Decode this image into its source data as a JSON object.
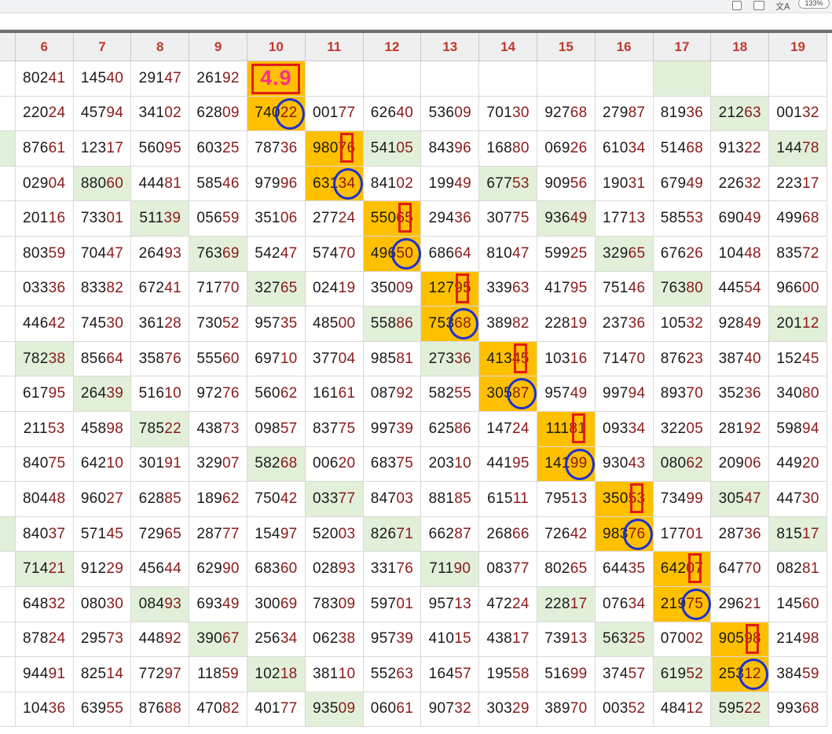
{
  "browser": {
    "zoom_label": "133%",
    "translate_glyph": "文A"
  },
  "sheet": {
    "columns": [
      "6",
      "7",
      "8",
      "9",
      "10",
      "11",
      "12",
      "13",
      "14",
      "15",
      "16",
      "17",
      "18",
      "19"
    ],
    "first_column_fragments": [
      "2",
      "3",
      "3",
      "7",
      "4",
      "6",
      "2",
      "0",
      "2",
      "9",
      "0",
      "0",
      "7",
      "7",
      "5",
      "4",
      "5",
      "5",
      "9"
    ],
    "rows": [
      [
        "80241",
        "14540",
        "29147",
        "26192",
        "4.9",
        "",
        "",
        "",
        "",
        "",
        "",
        "",
        "",
        ""
      ],
      [
        "22024",
        "45794",
        "34102",
        "62809",
        "74022",
        "00177",
        "62640",
        "53609",
        "70130",
        "92768",
        "27987",
        "81936",
        "21263",
        "00132"
      ],
      [
        "87661",
        "12317",
        "56095",
        "60325",
        "78736",
        "98076",
        "54105",
        "84396",
        "16880",
        "06926",
        "61034",
        "51468",
        "91322",
        "14478"
      ],
      [
        "02904",
        "88060",
        "44481",
        "58546",
        "97996",
        "63134",
        "84102",
        "19949",
        "67753",
        "90956",
        "19031",
        "67949",
        "22632",
        "22317"
      ],
      [
        "20116",
        "73301",
        "51139",
        "05659",
        "35106",
        "27724",
        "55065",
        "29436",
        "30775",
        "93649",
        "17713",
        "58553",
        "69049",
        "49968"
      ],
      [
        "80359",
        "70447",
        "26493",
        "76369",
        "54247",
        "57470",
        "49650",
        "68664",
        "81047",
        "59925",
        "32965",
        "67626",
        "10448",
        "83572"
      ],
      [
        "03336",
        "83382",
        "67241",
        "71770",
        "32765",
        "02419",
        "35009",
        "12795",
        "33963",
        "41795",
        "75146",
        "76380",
        "44554",
        "96600"
      ],
      [
        "44642",
        "74530",
        "36128",
        "73052",
        "95735",
        "48500",
        "55886",
        "75368",
        "38982",
        "22819",
        "23736",
        "10532",
        "92849",
        "20112"
      ],
      [
        "78238",
        "85664",
        "35876",
        "55560",
        "69710",
        "37704",
        "98581",
        "27336",
        "41345",
        "10316",
        "71470",
        "87623",
        "38740",
        "15245"
      ],
      [
        "61795",
        "26439",
        "51610",
        "97276",
        "56062",
        "16161",
        "08792",
        "58255",
        "30587",
        "95749",
        "99794",
        "89370",
        "35236",
        "34080"
      ],
      [
        "21153",
        "45898",
        "78522",
        "43873",
        "09857",
        "83775",
        "99739",
        "62586",
        "14724",
        "11181",
        "09334",
        "32205",
        "28192",
        "59894"
      ],
      [
        "84075",
        "64210",
        "30191",
        "32907",
        "58268",
        "00620",
        "68375",
        "20310",
        "44195",
        "14199",
        "93043",
        "08062",
        "20906",
        "44920"
      ],
      [
        "80448",
        "96027",
        "62885",
        "18962",
        "75042",
        "03377",
        "84703",
        "88185",
        "61511",
        "79513",
        "35053",
        "73499",
        "30547",
        "44730"
      ],
      [
        "84037",
        "57145",
        "72965",
        "28777",
        "15497",
        "52003",
        "82671",
        "66287",
        "26866",
        "72642",
        "98376",
        "17701",
        "28736",
        "81517"
      ],
      [
        "71421",
        "91229",
        "45644",
        "62990",
        "68360",
        "02893",
        "33176",
        "71190",
        "08377",
        "80265",
        "64435",
        "64207",
        "64770",
        "08281"
      ],
      [
        "64832",
        "08030",
        "08493",
        "69349",
        "30069",
        "78309",
        "59701",
        "95713",
        "47224",
        "22817",
        "07634",
        "21975",
        "29621",
        "14560"
      ],
      [
        "87824",
        "29573",
        "44892",
        "39067",
        "25634",
        "06238",
        "95739",
        "41015",
        "43817",
        "73913",
        "56325",
        "07002",
        "90598",
        "21498"
      ],
      [
        "94491",
        "82514",
        "77297",
        "11859",
        "10218",
        "38110",
        "55263",
        "16457",
        "19558",
        "51699",
        "37457",
        "61952",
        "25312",
        "38459"
      ],
      [
        "10436",
        "63955",
        "87688",
        "47082",
        "40177",
        "93509",
        "06061",
        "90732",
        "30329",
        "38970",
        "00352",
        "48412",
        "59522",
        "99368"
      ]
    ],
    "green_cells": [
      [
        0,
        11
      ],
      [
        1,
        12
      ],
      [
        2,
        5
      ],
      [
        2,
        6
      ],
      [
        2,
        13
      ],
      [
        3,
        1
      ],
      [
        3,
        8
      ],
      [
        4,
        2
      ],
      [
        4,
        9
      ],
      [
        5,
        3
      ],
      [
        5,
        10
      ],
      [
        6,
        4
      ],
      [
        6,
        11
      ],
      [
        7,
        6
      ],
      [
        7,
        13
      ],
      [
        8,
        0
      ],
      [
        8,
        7
      ],
      [
        9,
        1
      ],
      [
        10,
        2
      ],
      [
        11,
        4
      ],
      [
        11,
        11
      ],
      [
        12,
        5
      ],
      [
        12,
        12
      ],
      [
        13,
        6
      ],
      [
        13,
        13
      ],
      [
        14,
        0
      ],
      [
        14,
        7
      ],
      [
        15,
        2
      ],
      [
        15,
        9
      ],
      [
        16,
        3
      ],
      [
        16,
        10
      ],
      [
        17,
        4
      ],
      [
        17,
        11
      ],
      [
        18,
        5
      ],
      [
        18,
        12
      ]
    ],
    "orange_cells": [
      [
        0,
        4
      ],
      [
        1,
        4
      ],
      [
        2,
        5
      ],
      [
        3,
        5
      ],
      [
        4,
        6
      ],
      [
        5,
        6
      ],
      [
        6,
        7
      ],
      [
        7,
        7
      ],
      [
        8,
        8
      ],
      [
        9,
        8
      ],
      [
        10,
        9
      ],
      [
        11,
        9
      ],
      [
        12,
        10
      ],
      [
        13,
        10
      ],
      [
        14,
        11
      ],
      [
        15,
        11
      ],
      [
        16,
        12
      ],
      [
        17,
        12
      ]
    ],
    "colors": {
      "header_text": "#c0392b",
      "digits_prefix": "#1a1a1a",
      "digits_suffix": "#8b1a1a",
      "highlight_orange": "#ffc000",
      "highlight_green": "#e2f0d9",
      "mark_red": "#e31b1b",
      "mark_blue": "#1b2fd6",
      "big_value": "#ff2f8a"
    }
  }
}
